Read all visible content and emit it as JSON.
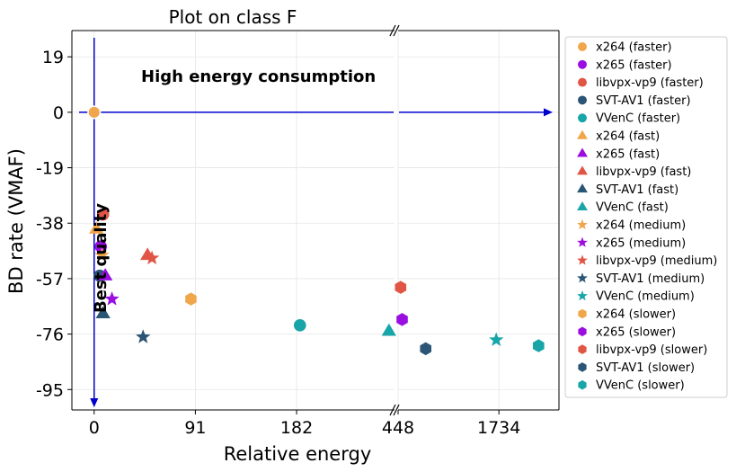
{
  "chart_data": {
    "type": "scatter",
    "title": "Plot on class F",
    "xlabel": "Relative energy",
    "ylabel": "BD rate (VMAF)",
    "x_ticks_left": [
      0,
      91,
      182
    ],
    "x_ticks_right": [
      448,
      1734
    ],
    "x_range_left": [
      -20,
      270
    ],
    "x_range_right": [
      448,
      2500
    ],
    "x_axis_break": true,
    "y_ticks": [
      19,
      0,
      -19,
      -38,
      -57,
      -76,
      -95
    ],
    "y_range": [
      -102,
      28
    ],
    "grid": true,
    "legend_position": "outside-right",
    "annotations": [
      {
        "text": "High energy consumption"
      },
      {
        "text": "Best quality"
      }
    ],
    "colors": {
      "x264": "#f0a64a",
      "x265": "#9a0ee0",
      "libvpx-vp9": "#e05545",
      "SVT-AV1": "#2b5575",
      "VVenC": "#18a5a8",
      "arrows": "#0000cc"
    },
    "series": [
      {
        "name": "x264 (faster)",
        "encoder": "x264",
        "preset": "faster",
        "marker": "circle",
        "points": [
          [
            0,
            0
          ]
        ]
      },
      {
        "name": "x265 (faster)",
        "encoder": "x265",
        "preset": "faster",
        "marker": "circle",
        "points": [
          [
            6,
            -46
          ]
        ]
      },
      {
        "name": "libvpx-vp9 (faster)",
        "encoder": "libvpx-vp9",
        "preset": "faster",
        "marker": "circle",
        "points": [
          [
            8,
            -35
          ]
        ]
      },
      {
        "name": "SVT-AV1 (faster)",
        "encoder": "SVT-AV1",
        "preset": "faster",
        "marker": "circle",
        "points": [
          [
            5,
            -56
          ]
        ]
      },
      {
        "name": "VVenC (faster)",
        "encoder": "VVenC",
        "preset": "faster",
        "marker": "circle",
        "points": [
          [
            185,
            -73
          ]
        ]
      },
      {
        "name": "x264 (fast)",
        "encoder": "x264",
        "preset": "fast",
        "marker": "triangle",
        "points": [
          [
            2,
            -40
          ]
        ]
      },
      {
        "name": "x265 (fast)",
        "encoder": "x265",
        "preset": "fast",
        "marker": "triangle",
        "points": [
          [
            10,
            -56
          ]
        ]
      },
      {
        "name": "libvpx-vp9 (fast)",
        "encoder": "libvpx-vp9",
        "preset": "fast",
        "marker": "triangle",
        "points": [
          [
            48,
            -49
          ]
        ]
      },
      {
        "name": "SVT-AV1 (fast)",
        "encoder": "SVT-AV1",
        "preset": "fast",
        "marker": "triangle",
        "points": [
          [
            8,
            -69
          ]
        ]
      },
      {
        "name": "VVenC (fast)",
        "encoder": "VVenC",
        "preset": "fast",
        "marker": "triangle",
        "points": [
          [
            265,
            -75
          ]
        ]
      },
      {
        "name": "x264 (medium)",
        "encoder": "x264",
        "preset": "medium",
        "marker": "star",
        "points": [
          [
            7,
            -49
          ]
        ]
      },
      {
        "name": "x265 (medium)",
        "encoder": "x265",
        "preset": "medium",
        "marker": "star",
        "points": [
          [
            16,
            -64
          ]
        ]
      },
      {
        "name": "libvpx-vp9 (medium)",
        "encoder": "libvpx-vp9",
        "preset": "medium",
        "marker": "star",
        "points": [
          [
            52,
            -50
          ]
        ]
      },
      {
        "name": "SVT-AV1 (medium)",
        "encoder": "SVT-AV1",
        "preset": "medium",
        "marker": "star",
        "points": [
          [
            44,
            -77
          ]
        ]
      },
      {
        "name": "VVenC (medium)",
        "encoder": "VVenC",
        "preset": "medium",
        "marker": "star",
        "points": [
          [
            1700,
            -78
          ]
        ]
      },
      {
        "name": "x264 (slower)",
        "encoder": "x264",
        "preset": "slower",
        "marker": "hexagon",
        "points": [
          [
            87,
            -64
          ]
        ]
      },
      {
        "name": "x265 (slower)",
        "encoder": "x265",
        "preset": "slower",
        "marker": "hexagon",
        "points": [
          [
            500,
            -71
          ]
        ]
      },
      {
        "name": "libvpx-vp9 (slower)",
        "encoder": "libvpx-vp9",
        "preset": "slower",
        "marker": "hexagon",
        "points": [
          [
            480,
            -60
          ]
        ]
      },
      {
        "name": "SVT-AV1 (slower)",
        "encoder": "SVT-AV1",
        "preset": "slower",
        "marker": "hexagon",
        "points": [
          [
            800,
            -81
          ]
        ]
      },
      {
        "name": "VVenC (slower)",
        "encoder": "VVenC",
        "preset": "slower",
        "marker": "hexagon",
        "points": [
          [
            2240,
            -80
          ]
        ]
      }
    ]
  }
}
